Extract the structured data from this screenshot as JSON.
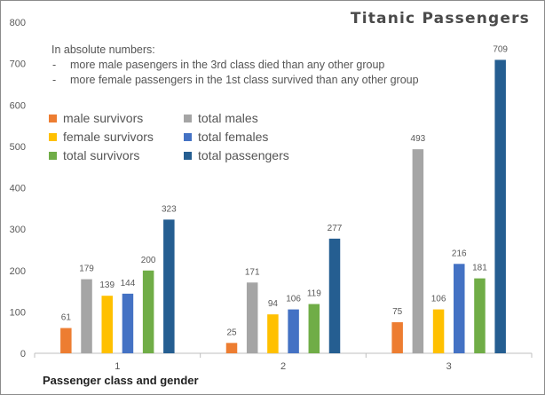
{
  "chart_data": {
    "type": "bar",
    "title": "Titanic Passengers",
    "xlabel": "Passenger class and gender",
    "ylabel": "",
    "ylim": [
      0,
      800
    ],
    "yticks": [
      0,
      100,
      200,
      300,
      400,
      500,
      600,
      700,
      800
    ],
    "grid": false,
    "legend_position": "upper-left",
    "categories": [
      "1",
      "2",
      "3"
    ],
    "series": [
      {
        "name": "male survivors",
        "color": "#ed7d31",
        "values": [
          61,
          25,
          75
        ]
      },
      {
        "name": "total males",
        "color": "#a5a5a5",
        "values": [
          179,
          171,
          493
        ]
      },
      {
        "name": "female survivors",
        "color": "#ffc000",
        "values": [
          139,
          94,
          106
        ]
      },
      {
        "name": "total females",
        "color": "#4472c4",
        "values": [
          144,
          106,
          216
        ]
      },
      {
        "name": "total survivors",
        "color": "#70ad47",
        "values": [
          200,
          119,
          181
        ]
      },
      {
        "name": "total passengers",
        "color": "#255e91",
        "values": [
          323,
          277,
          709
        ]
      }
    ],
    "annotation": {
      "intro": "In absolute numbers:",
      "bullets": [
        "more male pasengers in the 3rd class died than any other group",
        "more female passengers in the 1st class survived than any other group"
      ]
    }
  }
}
